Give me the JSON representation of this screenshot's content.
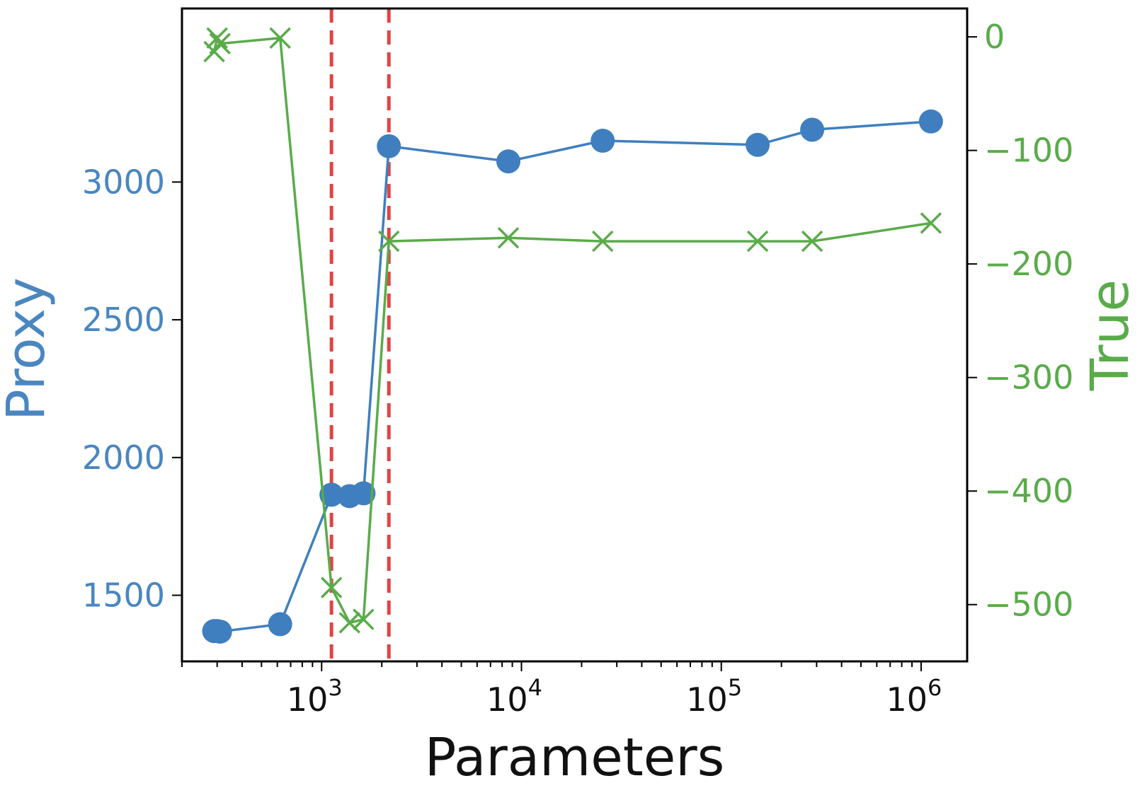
{
  "chart_data": {
    "type": "line",
    "title": "",
    "xlabel": "Parameters",
    "xscale": "log",
    "xlim": [
      200,
      1700000
    ],
    "x_ticks": [
      {
        "value": 1000,
        "label_base": "10",
        "label_exp": "3"
      },
      {
        "value": 10000,
        "label_base": "10",
        "label_exp": "4"
      },
      {
        "value": 100000,
        "label_base": "10",
        "label_exp": "5"
      },
      {
        "value": 1000000,
        "label_base": "10",
        "label_exp": "6"
      }
    ],
    "y_left": {
      "label": "Proxy",
      "color": "#4a86c0",
      "lim": [
        1260,
        3630
      ],
      "ticks": [
        {
          "value": 1500,
          "label": "1500"
        },
        {
          "value": 2000,
          "label": "2000"
        },
        {
          "value": 2500,
          "label": "2500"
        },
        {
          "value": 3000,
          "label": "3000"
        }
      ]
    },
    "y_right": {
      "label": "True",
      "color": "#5aab4a",
      "lim": [
        -550,
        25
      ],
      "ticks": [
        {
          "value": 0,
          "label": "0"
        },
        {
          "value": -100,
          "label": "−100"
        },
        {
          "value": -200,
          "label": "−200"
        },
        {
          "value": -300,
          "label": "−300"
        },
        {
          "value": -400,
          "label": "−400"
        },
        {
          "value": -500,
          "label": "−500"
        }
      ]
    },
    "series": [
      {
        "axis": "left",
        "marker": "circle",
        "color": "#3f7fbf",
        "x": [
          290,
          300,
          310,
          620,
          1120,
          1380,
          1620,
          2170,
          8600,
          25500,
          152000,
          285000,
          1120000
        ],
        "y": [
          1370,
          1370,
          1368,
          1395,
          1865,
          1860,
          1870,
          3130,
          3075,
          3150,
          3135,
          3190,
          3220
        ]
      },
      {
        "axis": "right",
        "marker": "x",
        "color": "#5aab4a",
        "x": [
          290,
          300,
          310,
          620,
          1120,
          1380,
          1620,
          2170,
          8600,
          25500,
          152000,
          285000,
          1120000
        ],
        "y": [
          -13,
          -1,
          -6,
          -1,
          -485,
          -516,
          -513,
          -180,
          -177,
          -180,
          -180,
          -180,
          -164
        ]
      }
    ],
    "vlines": [
      {
        "x": 1120,
        "color": "#e04444",
        "style": "dashed"
      },
      {
        "x": 2170,
        "color": "#e04444",
        "style": "dashed"
      }
    ],
    "grid": false,
    "legend": "none"
  }
}
